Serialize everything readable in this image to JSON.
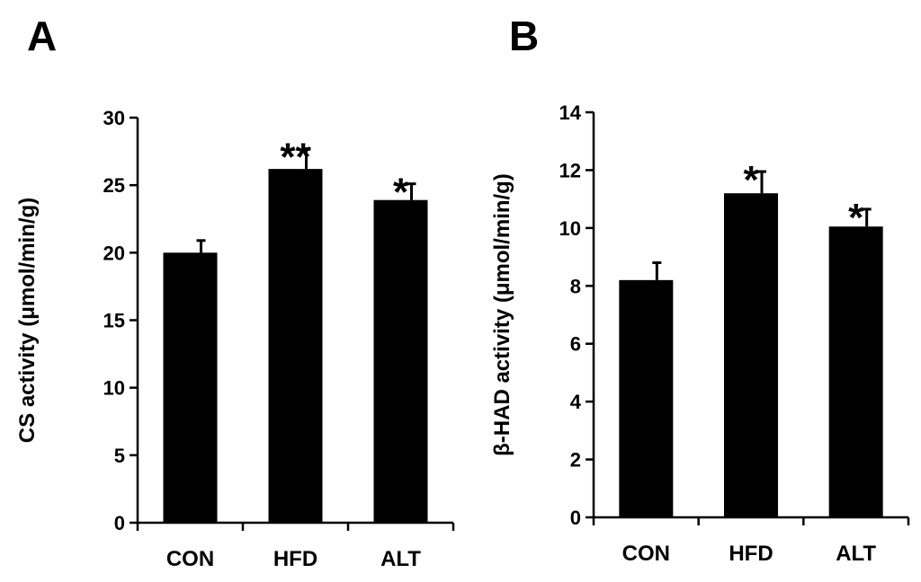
{
  "chart_data": [
    {
      "panel": "A",
      "type": "bar",
      "categories": [
        "CON",
        "HFD",
        "ALT"
      ],
      "values": [
        20.0,
        26.2,
        23.9
      ],
      "errors": [
        0.9,
        1.5,
        1.2
      ],
      "significance": [
        "",
        "**",
        "*"
      ],
      "ylabel": "CS activity (μmol/min/g)",
      "xlabel": "",
      "ylim": [
        0,
        30
      ],
      "yticks": [
        0,
        5,
        10,
        15,
        20,
        25,
        30
      ],
      "bar_color": "#000000",
      "grid": false
    },
    {
      "panel": "B",
      "type": "bar",
      "categories": [
        "CON",
        "HFD",
        "ALT"
      ],
      "values": [
        8.2,
        11.2,
        10.05
      ],
      "errors": [
        0.6,
        0.75,
        0.6
      ],
      "significance": [
        "",
        "*",
        "*"
      ],
      "ylabel": "β-HAD activity (μmol/min/g)",
      "xlabel": "",
      "ylim": [
        0,
        14
      ],
      "yticks": [
        0,
        2,
        4,
        6,
        8,
        10,
        12,
        14
      ],
      "bar_color": "#000000",
      "grid": false
    }
  ]
}
